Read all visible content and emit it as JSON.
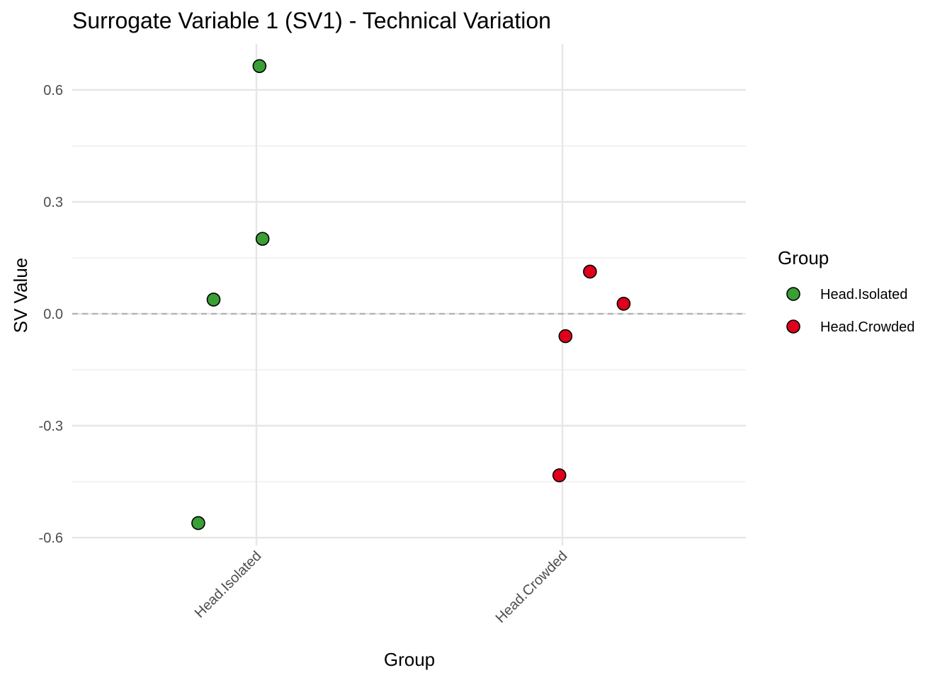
{
  "chart_data": {
    "type": "scatter",
    "title": "Surrogate Variable 1 (SV1) - Technical Variation",
    "xlabel": "Group",
    "ylabel": "SV Value",
    "categories": [
      "Head.Isolated",
      "Head.Crowded"
    ],
    "ylim": [
      -0.63,
      0.76
    ],
    "yticks": [
      -0.6,
      -0.3,
      0.0,
      0.3,
      0.6
    ],
    "ytick_labels": [
      "-0.6",
      "-0.3",
      "0.0",
      "0.3",
      "0.6"
    ],
    "reference_line": {
      "y": 0.0,
      "style": "dashed"
    },
    "grid": true,
    "legend": {
      "title": "Group",
      "position": "right",
      "entries": [
        "Head.Isolated",
        "Head.Crowded"
      ]
    },
    "series": [
      {
        "name": "Head.Isolated",
        "color": "#3a9f35",
        "points": [
          {
            "category": "Head.Isolated",
            "jitter": 0.01,
            "y": 0.664
          },
          {
            "category": "Head.Isolated",
            "jitter": 0.02,
            "y": 0.201
          },
          {
            "category": "Head.Isolated",
            "jitter": -0.14,
            "y": 0.038
          },
          {
            "category": "Head.Isolated",
            "jitter": -0.19,
            "y": -0.561
          }
        ]
      },
      {
        "name": "Head.Crowded",
        "color": "#e0001b",
        "points": [
          {
            "category": "Head.Crowded",
            "jitter": 0.09,
            "y": 0.113
          },
          {
            "category": "Head.Crowded",
            "jitter": 0.2,
            "y": 0.027
          },
          {
            "category": "Head.Crowded",
            "jitter": 0.01,
            "y": -0.06
          },
          {
            "category": "Head.Crowded",
            "jitter": -0.01,
            "y": -0.433
          }
        ]
      }
    ]
  }
}
